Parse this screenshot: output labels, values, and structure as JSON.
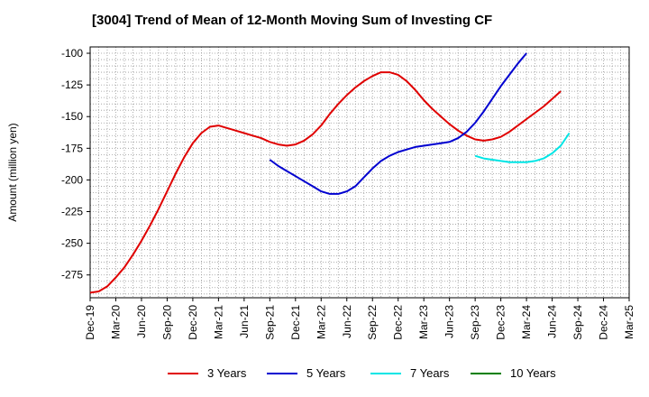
{
  "chart_data": {
    "type": "line",
    "title": "[3004]  Trend of Mean of 12-Month Moving Sum of Investing CF",
    "xlabel": "",
    "ylabel": "Amount (million yen)",
    "ylim": [
      -293,
      -95
    ],
    "yticks": [
      -100,
      -125,
      -150,
      -175,
      -200,
      -225,
      -250,
      -275
    ],
    "x_tick_labels": [
      "Dec-19",
      "Mar-20",
      "Jun-20",
      "Sep-20",
      "Dec-20",
      "Mar-21",
      "Jun-21",
      "Sep-21",
      "Dec-21",
      "Mar-22",
      "Jun-22",
      "Sep-22",
      "Dec-22",
      "Mar-23",
      "Jun-23",
      "Sep-23",
      "Dec-23",
      "Mar-24",
      "Jun-24",
      "Sep-24",
      "Dec-24",
      "Mar-25"
    ],
    "grid": true,
    "legend_position": "bottom",
    "series": [
      {
        "name": "3 Years",
        "color": "#e00000",
        "start_index": 0,
        "values": [
          -289,
          -288,
          -284,
          -277,
          -269,
          -259,
          -248,
          -236,
          -223,
          -209,
          -195,
          -182,
          -171,
          -163,
          -158,
          -157,
          -159,
          -161,
          -163,
          -165,
          -167,
          -170,
          -172,
          -173,
          -172,
          -169,
          -164,
          -157,
          -148,
          -140,
          -133,
          -127,
          -122,
          -118,
          -115,
          -115,
          -117,
          -122,
          -129,
          -137,
          -144,
          -150,
          -156,
          -161,
          -165,
          -168,
          -169,
          -168,
          -166,
          -162,
          -157,
          -152,
          -147,
          -142,
          -136,
          -130
        ]
      },
      {
        "name": "5 Years",
        "color": "#0000d0",
        "start_index": 21,
        "values": [
          -184,
          -189,
          -193,
          -197,
          -201,
          -205,
          -209,
          -211,
          -211,
          -209,
          -205,
          -198,
          -191,
          -185,
          -181,
          -178,
          -176,
          -174,
          -173,
          -172,
          -171,
          -170,
          -167,
          -162,
          -155,
          -146,
          -136,
          -126,
          -117,
          -108,
          -100
        ]
      },
      {
        "name": "7 Years",
        "color": "#00e5e5",
        "start_index": 45,
        "values": [
          -181,
          -183,
          -184,
          -185,
          -186,
          -186,
          -186,
          -185,
          -183,
          -179,
          -173,
          -163
        ]
      },
      {
        "name": "10 Years",
        "color": "#008000",
        "start_index": 0,
        "values": []
      }
    ]
  }
}
